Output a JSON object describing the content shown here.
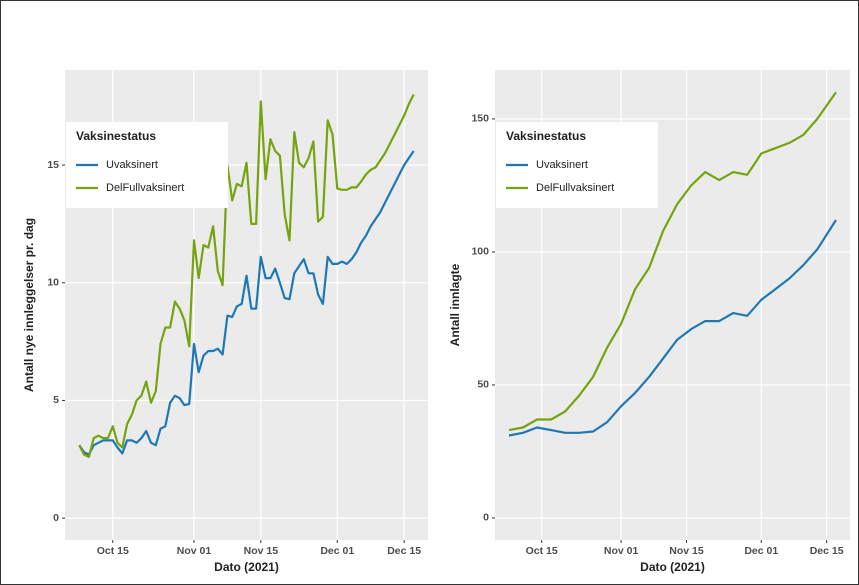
{
  "chart_data": [
    {
      "type": "line",
      "xlabel": "Dato (2021)",
      "ylabel": "Antall nye innleggelser pr. dag",
      "legend_title": "Vaksinestatus",
      "legend": "top-left",
      "grid": true,
      "x": [
        "Oct 08",
        "Oct 09",
        "Oct 10",
        "Oct 11",
        "Oct 12",
        "Oct 13",
        "Oct 14",
        "Oct 15",
        "Oct 16",
        "Oct 17",
        "Oct 18",
        "Oct 19",
        "Oct 20",
        "Oct 21",
        "Oct 22",
        "Oct 23",
        "Oct 24",
        "Oct 25",
        "Oct 26",
        "Oct 27",
        "Oct 28",
        "Oct 29",
        "Oct 30",
        "Oct 31",
        "Nov 01",
        "Nov 02",
        "Nov 03",
        "Nov 04",
        "Nov 05",
        "Nov 06",
        "Nov 07",
        "Nov 08",
        "Nov 09",
        "Nov 10",
        "Nov 11",
        "Nov 12",
        "Nov 13",
        "Nov 14",
        "Nov 15",
        "Nov 16",
        "Nov 17",
        "Nov 18",
        "Nov 19",
        "Nov 20",
        "Nov 21",
        "Nov 22",
        "Nov 23",
        "Nov 24",
        "Nov 25",
        "Nov 26",
        "Nov 27",
        "Nov 28",
        "Nov 29",
        "Nov 30",
        "Dec 01",
        "Dec 02",
        "Dec 03",
        "Dec 04",
        "Dec 05",
        "Dec 06",
        "Dec 07",
        "Dec 08",
        "Dec 09",
        "Dec 10",
        "Dec 11",
        "Dec 12",
        "Dec 13",
        "Dec 14",
        "Dec 15",
        "Dec 16",
        "Dec 17"
      ],
      "series": [
        {
          "name": "Uvaksinert",
          "color": "#1f78b4",
          "values": [
            3.1,
            2.8,
            2.7,
            3.1,
            3.2,
            3.3,
            3.3,
            3.3,
            3.0,
            2.75,
            3.3,
            3.3,
            3.2,
            3.4,
            3.7,
            3.2,
            3.1,
            3.8,
            3.9,
            4.9,
            5.2,
            5.1,
            4.8,
            4.85,
            7.4,
            6.2,
            6.9,
            7.1,
            7.1,
            7.2,
            6.95,
            8.6,
            8.55,
            9.0,
            9.1,
            10.3,
            8.9,
            8.9,
            11.1,
            10.2,
            10.2,
            10.6,
            10.0,
            9.35,
            9.3,
            10.4,
            10.7,
            11.0,
            10.4,
            10.4,
            9.5,
            9.1,
            11.1,
            10.8,
            10.8,
            10.9,
            10.8,
            11.0,
            11.3,
            11.7,
            12.0,
            12.4,
            12.7,
            13.0,
            13.4,
            13.8,
            14.2,
            14.6,
            15.0,
            15.3,
            15.6
          ]
        },
        {
          "name": "DelFullvaksinert",
          "color": "#76a30f",
          "values": [
            3.1,
            2.7,
            2.6,
            3.4,
            3.5,
            3.4,
            3.4,
            3.9,
            3.2,
            3.0,
            4.0,
            4.4,
            5.0,
            5.2,
            5.8,
            4.9,
            5.4,
            7.4,
            8.1,
            8.1,
            9.2,
            8.9,
            8.4,
            7.3,
            11.8,
            10.2,
            11.6,
            11.5,
            12.4,
            10.5,
            9.9,
            15.0,
            13.5,
            14.2,
            14.1,
            15.1,
            12.5,
            12.5,
            17.7,
            14.4,
            16.1,
            15.6,
            15.4,
            12.9,
            11.8,
            16.4,
            15.1,
            14.9,
            15.3,
            16.0,
            12.6,
            12.8,
            16.9,
            16.3,
            14.0,
            13.95,
            13.95,
            14.05,
            14.05,
            14.3,
            14.6,
            14.8,
            14.9,
            15.2,
            15.5,
            15.9,
            16.3,
            16.7,
            17.1,
            17.6,
            18.0
          ]
        }
      ],
      "xlim": [
        "Oct 05",
        "Dec 20"
      ],
      "xticks": [
        "Oct 15",
        "Nov 01",
        "Nov 15",
        "Dec 01",
        "Dec 15"
      ],
      "ylim": [
        -0.93,
        19.04
      ],
      "yticks": [
        0,
        5,
        10,
        15
      ]
    },
    {
      "type": "line",
      "xlabel": "Dato (2021)",
      "ylabel": "Antall innlagte",
      "legend_title": "Vaksinestatus",
      "legend": "top-left",
      "grid": true,
      "x": [
        "Oct 08",
        "Oct 11",
        "Oct 14",
        "Oct 17",
        "Oct 20",
        "Oct 23",
        "Oct 26",
        "Oct 29",
        "Nov 01",
        "Nov 04",
        "Nov 07",
        "Nov 10",
        "Nov 13",
        "Nov 16",
        "Nov 19",
        "Nov 22",
        "Nov 25",
        "Nov 28",
        "Dec 01",
        "Dec 04",
        "Dec 07",
        "Dec 10",
        "Dec 13",
        "Dec 17"
      ],
      "series": [
        {
          "name": "Uvaksinert",
          "color": "#1f78b4",
          "values": [
            31,
            32,
            34,
            33,
            32,
            32,
            32.5,
            36,
            42,
            47,
            53,
            60,
            67,
            71,
            74,
            74,
            77,
            76,
            82,
            86,
            90,
            95,
            101,
            112
          ]
        },
        {
          "name": "DelFullvaksinert",
          "color": "#76a30f",
          "values": [
            33,
            34,
            37,
            37,
            40,
            46,
            53,
            64,
            73,
            86,
            94,
            108,
            118,
            125,
            130,
            127,
            130,
            129,
            137,
            139,
            141,
            144,
            150,
            160
          ]
        }
      ],
      "xlim": [
        "Oct 05",
        "Dec 20"
      ],
      "xticks": [
        "Oct 15",
        "Nov 01",
        "Nov 15",
        "Dec 01",
        "Dec 15"
      ],
      "ylim": [
        -8.3,
        168.4
      ],
      "yticks": [
        0,
        50,
        100,
        150
      ]
    }
  ]
}
